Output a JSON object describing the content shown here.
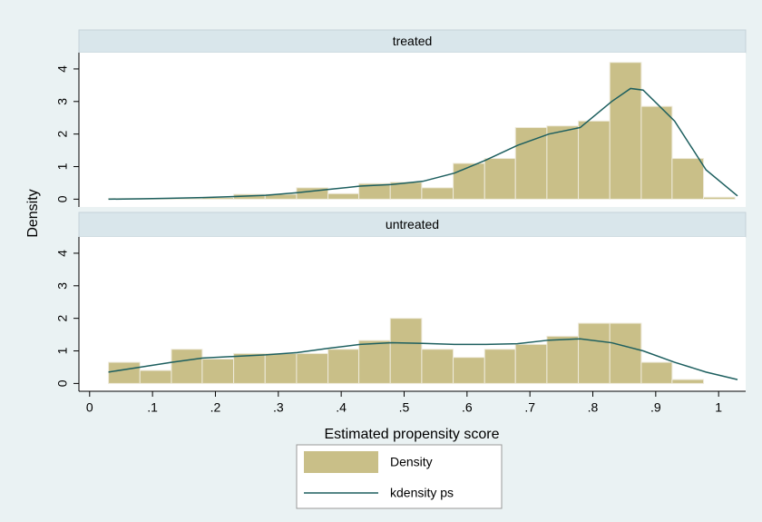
{
  "chart_data": {
    "type": "histogram",
    "xlabel": "Estimated propensity score",
    "ylabel": "Density",
    "bins": [
      0.03,
      0.08,
      0.13,
      0.179,
      0.229,
      0.279,
      0.329,
      0.379,
      0.428,
      0.478,
      0.528,
      0.578,
      0.628,
      0.677,
      0.727,
      0.777,
      0.827,
      0.877,
      0.926,
      0.976,
      1.026
    ],
    "kde_x": [
      0.03,
      0.08,
      0.13,
      0.18,
      0.23,
      0.28,
      0.33,
      0.38,
      0.43,
      0.48,
      0.53,
      0.58,
      0.63,
      0.68,
      0.73,
      0.78,
      0.83,
      0.86,
      0.88,
      0.93,
      0.98,
      1.03
    ],
    "panels": [
      {
        "title": "treated",
        "values": [
          0.02,
          0.02,
          0.03,
          0.05,
          0.15,
          0.15,
          0.35,
          0.17,
          0.48,
          0.52,
          0.35,
          1.1,
          1.25,
          2.2,
          2.25,
          2.4,
          4.2,
          2.85,
          1.25,
          0.06
        ],
        "kde": [
          0.0,
          0.01,
          0.03,
          0.05,
          0.08,
          0.12,
          0.2,
          0.3,
          0.4,
          0.45,
          0.55,
          0.8,
          1.2,
          1.65,
          2.0,
          2.2,
          3.0,
          3.4,
          3.35,
          2.4,
          0.9,
          0.1
        ]
      },
      {
        "title": "untreated",
        "values": [
          0.65,
          0.4,
          1.05,
          0.75,
          0.92,
          0.92,
          0.92,
          1.05,
          1.32,
          2.0,
          1.05,
          0.8,
          1.05,
          1.2,
          1.45,
          1.85,
          1.85,
          0.65,
          0.12,
          0
        ],
        "kde": [
          0.35,
          0.5,
          0.65,
          0.78,
          0.83,
          0.88,
          0.95,
          1.08,
          1.2,
          1.25,
          1.23,
          1.2,
          1.2,
          1.22,
          1.33,
          1.37,
          1.25,
          1.1,
          1.0,
          0.65,
          0.35,
          0.12
        ]
      }
    ],
    "legend": [
      {
        "name": "Density",
        "color": "#c9bf88"
      },
      {
        "name": "kdensity ps",
        "color": "#1d5f5f"
      }
    ],
    "xlim": [
      -0.017,
      1.043
    ],
    "xticks": [
      0,
      {
        "value": 0.1,
        "label": ".1"
      },
      {
        "value": 0.2,
        "label": ".2"
      },
      {
        "value": 0.3,
        "label": ".3"
      },
      {
        "value": 0.4,
        "label": ".4"
      },
      {
        "value": 0.5,
        "label": ".5"
      },
      {
        "value": 0.6,
        "label": ".6"
      },
      {
        "value": 0.7,
        "label": ".7"
      },
      {
        "value": 0.8,
        "label": ".8"
      },
      {
        "value": 0.9,
        "label": ".9"
      },
      1
    ],
    "ylim": [
      -0.24,
      4.5
    ],
    "yticks": [
      0,
      1,
      2,
      3,
      4
    ]
  }
}
